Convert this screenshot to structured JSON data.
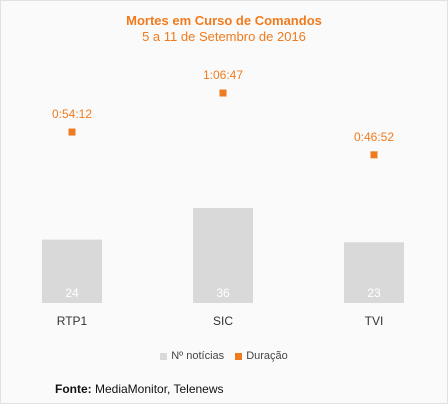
{
  "chart_data": {
    "type": "bar",
    "title": "Mortes em Curso de Comandos",
    "subtitle": "5 a 11 de Setembro de 2016",
    "categories": [
      "RTP1",
      "SIC",
      "TVI"
    ],
    "series": [
      {
        "name": "Nº notícias",
        "type": "bar",
        "color": "#d9d9d9",
        "values": [
          24,
          36,
          23
        ],
        "labels": [
          "24",
          "36",
          "23"
        ]
      },
      {
        "name": "Duração",
        "type": "marker",
        "color": "#f07b1e",
        "values": [
          3252,
          4007,
          2812
        ],
        "labels": [
          "0:54:12",
          "1:06:47",
          "0:46:52"
        ]
      }
    ],
    "ylim": [
      0,
      42
    ],
    "grid": false,
    "legend": "bottom"
  },
  "legend": [
    {
      "label": "Nº notícias",
      "color": "#d9d9d9"
    },
    {
      "label": "Duração",
      "color": "#f07b1e"
    }
  ],
  "source": {
    "label": "Fonte:",
    "text": "MediaMonitor, Telenews"
  }
}
